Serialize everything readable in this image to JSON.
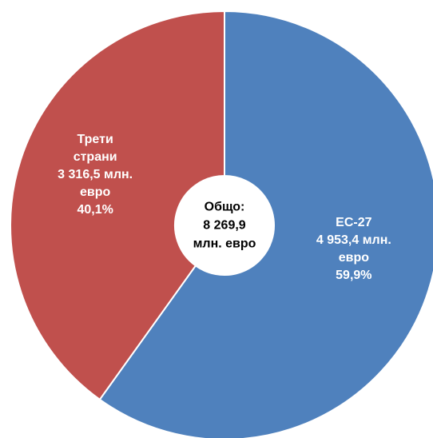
{
  "chart_data": {
    "type": "donut",
    "categories": [
      "ЕС-27",
      "Трети страни"
    ],
    "values": [
      4953.4,
      3316.5
    ],
    "value_labels": [
      "4 953,4 млн. евро",
      "3 316,5 млн. евро"
    ],
    "percentages": [
      59.9,
      40.1
    ],
    "percentage_labels": [
      "59,9%",
      "40,1%"
    ],
    "colors": [
      "#4f81bd",
      "#c0504d"
    ],
    "center_lines": [
      "Общо:",
      "8 269,9",
      "млн. евро"
    ]
  }
}
